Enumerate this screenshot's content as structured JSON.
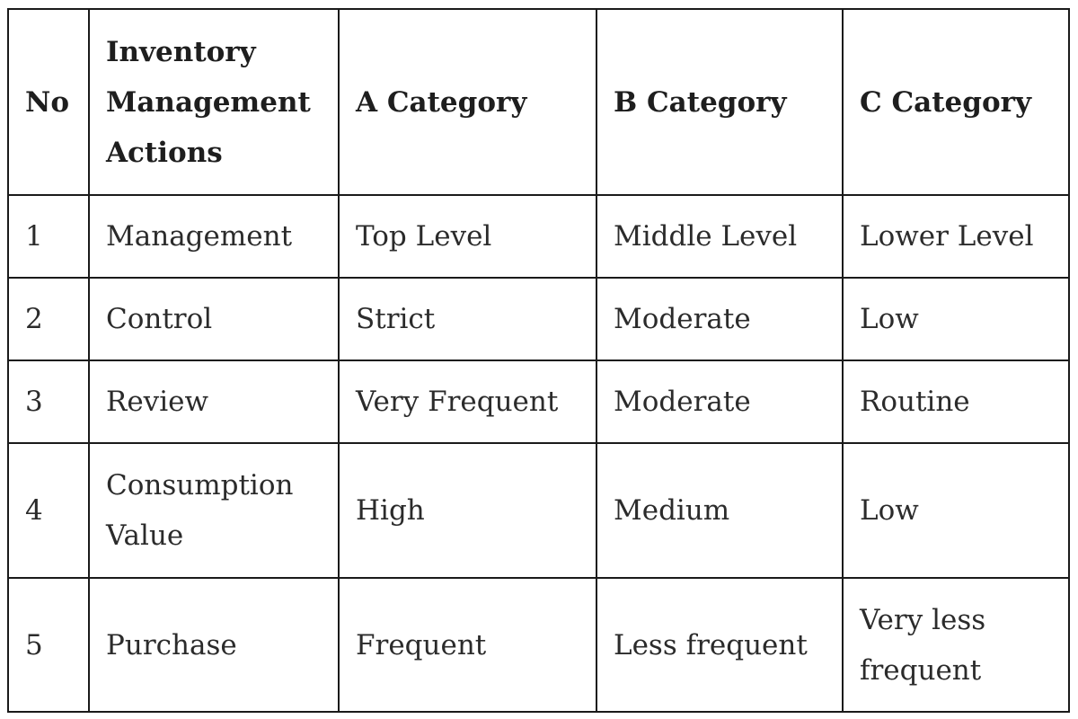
{
  "table": {
    "headers": [
      "No",
      "Inventory Management Actions",
      "A Category",
      "B Category",
      "C Category"
    ],
    "rows": [
      [
        "1",
        "Management",
        "Top Level",
        "Middle Level",
        "Lower Level"
      ],
      [
        "2",
        "Control",
        "Strict",
        "Moderate",
        "Low"
      ],
      [
        "3",
        "Review",
        "Very Frequent",
        "Moderate",
        "Routine"
      ],
      [
        "4",
        "Consumption Value",
        "High",
        "Medium",
        "Low"
      ],
      [
        "5",
        "Purchase",
        "Frequent",
        "Less frequent",
        "Very less frequent"
      ]
    ]
  }
}
